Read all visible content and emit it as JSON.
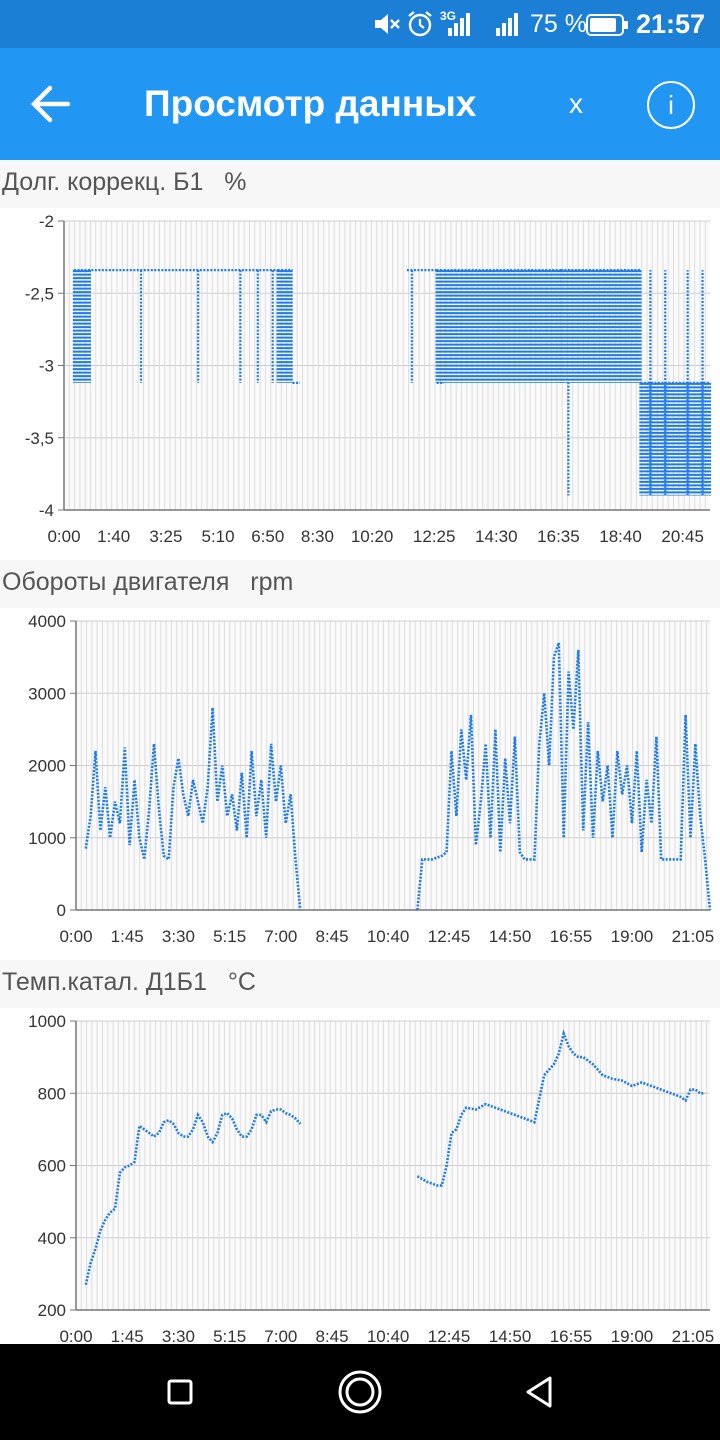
{
  "status_bar": {
    "battery": "75 %",
    "time": "21:57",
    "network": "3G"
  },
  "app_bar": {
    "title": "Просмотр данных",
    "close_label": "x",
    "info_label": "i"
  },
  "colors": {
    "primary": "#2196f3",
    "status": "#1b7fd6",
    "series": "#1e7be8",
    "grid": "#dddddd"
  },
  "chart_data": [
    {
      "type": "line",
      "title": "Долг. коррекц. Б1",
      "unit": "%",
      "ylim": [
        -4,
        -2
      ],
      "yticks": [
        "-2",
        "-2,5",
        "-3",
        "-3,5",
        "-4"
      ],
      "xticks": [
        "0:00",
        "1:40",
        "3:25",
        "5:10",
        "6:50",
        "8:30",
        "10:20",
        "12:25",
        "14:30",
        "16:35",
        "18:40",
        "20:45"
      ],
      "x_minutes": [
        0,
        100,
        205,
        310,
        410,
        510,
        620,
        745,
        870,
        995,
        1120,
        1245
      ],
      "xmax_minutes": 1300,
      "grid": true,
      "segments": [
        {
          "from": 20,
          "to": 55,
          "high": -2.34,
          "low": -3.12,
          "dense": true
        },
        {
          "from": 55,
          "to": 430,
          "high": -2.34,
          "low": -3.12,
          "spikes": [
            155,
            270,
            355,
            390,
            420
          ]
        },
        {
          "from": 430,
          "to": 460,
          "high": -2.34,
          "low": -3.12,
          "dense": true,
          "end": -3.12
        },
        {
          "from": 690,
          "to": 750,
          "high": -2.34,
          "low": -3.12,
          "spikes": [
            700
          ],
          "end": -3.12
        },
        {
          "from": 750,
          "to": 1000,
          "high": -2.34,
          "low": -3.12,
          "dense": true
        },
        {
          "from": 1000,
          "to": 1160,
          "high": -2.34,
          "low": -3.12,
          "dense": true,
          "dips": [
            1015
          ],
          "dip_low": -3.9
        },
        {
          "from": 1160,
          "to": 1300,
          "high": -3.12,
          "low": -3.9,
          "dense": true,
          "tops": [
            1180,
            1210,
            1255,
            1285
          ],
          "top_high": -2.34
        }
      ]
    },
    {
      "type": "line",
      "title": "Обороты двигателя",
      "unit": "rpm",
      "ylim": [
        0,
        4000
      ],
      "yticks": [
        "4000",
        "3000",
        "2000",
        "1000",
        "0"
      ],
      "xticks": [
        "0:00",
        "1:45",
        "3:30",
        "5:15",
        "7:00",
        "8:45",
        "10:40",
        "12:45",
        "14:50",
        "16:55",
        "19:00",
        "21:05"
      ],
      "x_minutes": [
        0,
        105,
        210,
        315,
        420,
        525,
        640,
        765,
        890,
        1015,
        1140,
        1265
      ],
      "xmax_minutes": 1300,
      "grid": true,
      "series": [
        {
          "name": "rpm",
          "x": [
            20,
            30,
            40,
            50,
            60,
            70,
            80,
            90,
            100,
            110,
            120,
            130,
            140,
            150,
            160,
            170,
            180,
            190,
            200,
            210,
            220,
            230,
            240,
            250,
            260,
            270,
            280,
            290,
            300,
            310,
            320,
            330,
            340,
            350,
            360,
            370,
            380,
            390,
            400,
            410,
            420,
            430,
            440,
            450,
            460
          ],
          "y": [
            850,
            1300,
            2200,
            1100,
            1700,
            1000,
            1500,
            1200,
            2250,
            900,
            1800,
            1000,
            700,
            1400,
            2300,
            1400,
            750,
            700,
            1700,
            2100,
            1600,
            1300,
            1800,
            1500,
            1200,
            1700,
            2800,
            1500,
            2000,
            1300,
            1600,
            1100,
            1900,
            1000,
            2200,
            1300,
            1800,
            1000,
            2300,
            1500,
            2000,
            1200,
            1600,
            700,
            0
          ]
        },
        {
          "name": "rpm",
          "x": [
            700,
            710,
            730,
            750,
            760,
            770,
            780,
            790,
            800,
            810,
            820,
            830,
            840,
            850,
            860,
            870,
            880,
            890,
            900,
            910,
            920,
            930,
            940,
            950,
            960,
            970,
            980,
            990,
            1000,
            1010,
            1020,
            1030,
            1040,
            1050,
            1060,
            1070,
            1080,
            1090,
            1100,
            1110,
            1120,
            1130,
            1140,
            1150,
            1160,
            1170,
            1180,
            1190,
            1200,
            1210,
            1220,
            1230,
            1240,
            1250,
            1260,
            1270,
            1280,
            1290,
            1300
          ],
          "y": [
            0,
            700,
            700,
            750,
            800,
            2200,
            1300,
            2500,
            1800,
            2700,
            900,
            1500,
            2300,
            1000,
            2500,
            800,
            2100,
            1200,
            2400,
            800,
            700,
            700,
            700,
            2300,
            3000,
            2000,
            3500,
            3700,
            1000,
            3300,
            2500,
            3600,
            1100,
            2600,
            1000,
            2200,
            1500,
            2000,
            1000,
            2200,
            1600,
            2000,
            1200,
            2200,
            800,
            1800,
            1200,
            2400,
            700,
            700,
            700,
            700,
            700,
            2700,
            1000,
            2300,
            1300,
            700,
            0
          ]
        }
      ]
    },
    {
      "type": "line",
      "title": "Темп.катал. Д1Б1",
      "unit": "°C",
      "ylim": [
        200,
        1000
      ],
      "yticks": [
        "1000",
        "800",
        "600",
        "400",
        "200"
      ],
      "xticks": [
        "0:00",
        "1:45",
        "3:30",
        "5:15",
        "7:00",
        "8:45",
        "10:40",
        "12:45",
        "14:50",
        "16:55",
        "19:00",
        "21:05"
      ],
      "x_minutes": [
        0,
        105,
        210,
        315,
        420,
        525,
        640,
        765,
        890,
        1015,
        1140,
        1265
      ],
      "xmax_minutes": 1300,
      "grid": true,
      "series": [
        {
          "name": "temp",
          "x": [
            20,
            30,
            40,
            50,
            60,
            70,
            80,
            90,
            100,
            110,
            120,
            130,
            140,
            150,
            160,
            170,
            180,
            190,
            200,
            210,
            220,
            230,
            240,
            250,
            260,
            270,
            280,
            290,
            300,
            310,
            320,
            330,
            340,
            350,
            360,
            370,
            380,
            390,
            400,
            410,
            420,
            430,
            440,
            450,
            460
          ],
          "y": [
            270,
            330,
            370,
            420,
            450,
            470,
            480,
            580,
            595,
            600,
            610,
            710,
            700,
            690,
            680,
            690,
            720,
            725,
            715,
            690,
            680,
            680,
            700,
            740,
            720,
            680,
            665,
            690,
            740,
            745,
            730,
            700,
            680,
            680,
            700,
            740,
            740,
            720,
            750,
            755,
            755,
            745,
            740,
            730,
            715
          ]
        },
        {
          "name": "temp",
          "x": [
            700,
            720,
            740,
            750,
            760,
            770,
            780,
            790,
            800,
            820,
            840,
            860,
            880,
            900,
            920,
            940,
            960,
            980,
            990,
            1000,
            1010,
            1020,
            1030,
            1040,
            1060,
            1080,
            1100,
            1120,
            1140,
            1160,
            1180,
            1200,
            1220,
            1240,
            1250,
            1260,
            1270,
            1280,
            1290
          ],
          "y": [
            570,
            555,
            545,
            545,
            600,
            690,
            700,
            740,
            760,
            755,
            770,
            760,
            750,
            740,
            730,
            720,
            850,
            880,
            910,
            965,
            930,
            910,
            900,
            900,
            880,
            850,
            840,
            835,
            820,
            830,
            820,
            810,
            800,
            790,
            780,
            810,
            810,
            800,
            800
          ]
        }
      ]
    }
  ]
}
